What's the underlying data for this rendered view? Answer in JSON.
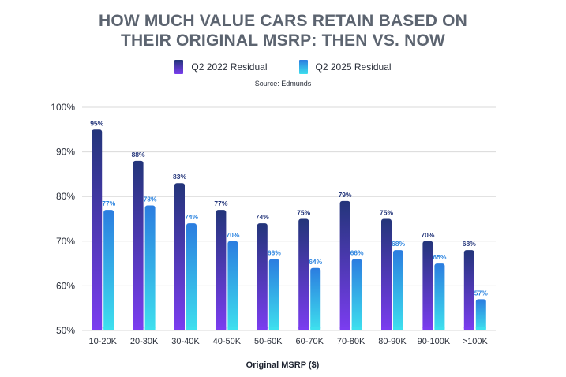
{
  "chart_data": {
    "type": "bar",
    "title_line1": "HOW MUCH VALUE CARS RETAIN BASED ON",
    "title_line2": "THEIR ORIGINAL MSRP: THEN VS. NOW",
    "source": "Source: Edmunds",
    "xlabel": "Original MSRP ($)",
    "ylabel": "",
    "ylim": [
      50,
      100
    ],
    "yticks": [
      50,
      60,
      70,
      80,
      90,
      100
    ],
    "ytick_labels": [
      "50%",
      "60%",
      "70%",
      "80%",
      "90%",
      "100%"
    ],
    "grid": true,
    "legend_position": "top-center",
    "categories": [
      "10-20K",
      "20-30K",
      "30-40K",
      "40-50K",
      "50-60K",
      "60-70K",
      "70-80K",
      "80-90K",
      "90-100K",
      ">100K"
    ],
    "series": [
      {
        "name": "Q2 2022 Residual",
        "values": [
          95,
          88,
          83,
          77,
          74,
          75,
          79,
          75,
          70,
          68
        ],
        "labels": [
          "95%",
          "88%",
          "83%",
          "77%",
          "74%",
          "75%",
          "79%",
          "75%",
          "70%",
          "68%"
        ],
        "color_top": "#23357a",
        "color_bottom": "#7b3df0"
      },
      {
        "name": "Q2 2025 Residual",
        "values": [
          77,
          78,
          74,
          70,
          66,
          64,
          66,
          68,
          65,
          57
        ],
        "labels": [
          "77%",
          "78%",
          "74%",
          "70%",
          "66%",
          "64%",
          "66%",
          "68%",
          "65%",
          "57%"
        ],
        "color_top": "#2b7de0",
        "color_bottom": "#3ee0ee"
      }
    ]
  }
}
